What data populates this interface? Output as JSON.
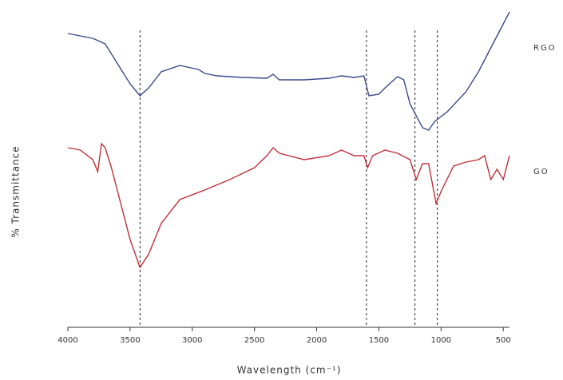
{
  "chart_data": {
    "type": "line",
    "x_label": "Wavelength (cm⁻¹)",
    "y_label": "% Transmittance",
    "xlim": [
      4000,
      450
    ],
    "xticks": [
      4000,
      3500,
      3000,
      2500,
      2000,
      1500,
      1000,
      500
    ],
    "ylim": [
      0,
      100
    ],
    "reference_lines": [
      3420,
      1600,
      1210,
      1030
    ],
    "series": [
      {
        "name": "RGO",
        "color": "#3b4a8c",
        "x": [
          4000,
          3900,
          3800,
          3700,
          3600,
          3500,
          3420,
          3350,
          3250,
          3100,
          2950,
          2900,
          2800,
          2600,
          2400,
          2350,
          2300,
          2100,
          1900,
          1800,
          1700,
          1620,
          1580,
          1500,
          1450,
          1350,
          1300,
          1250,
          1150,
          1100,
          1050,
          950,
          800,
          700,
          600,
          500,
          450
        ],
        "values": [
          92,
          91.25,
          90.5,
          88.75,
          82.5,
          76.25,
          72.5,
          75,
          80,
          82,
          80.75,
          79.5,
          78.75,
          78.25,
          78,
          79.25,
          77.5,
          77.5,
          78,
          78.75,
          78.25,
          78.75,
          72.5,
          73,
          75,
          78.5,
          77.5,
          70,
          62.5,
          61.75,
          64.5,
          67.5,
          73.75,
          80,
          87.5,
          95,
          98.75
        ]
      },
      {
        "name": "GO",
        "color": "#c0303a",
        "x": [
          4000,
          3900,
          3800,
          3760,
          3730,
          3700,
          3650,
          3600,
          3500,
          3420,
          3350,
          3250,
          3100,
          2900,
          2700,
          2500,
          2400,
          2350,
          2300,
          2100,
          1900,
          1800,
          1700,
          1620,
          1590,
          1550,
          1450,
          1350,
          1250,
          1200,
          1150,
          1100,
          1040,
          1000,
          900,
          800,
          700,
          650,
          600,
          550,
          500,
          450
        ],
        "values": [
          56.25,
          55.5,
          52.5,
          48.75,
          57.5,
          56.25,
          50,
          42.5,
          27.5,
          18.75,
          23,
          32.5,
          40,
          43,
          46.25,
          50,
          53.75,
          56.25,
          54.5,
          52.5,
          53.75,
          55.5,
          53.75,
          53.75,
          50,
          53.75,
          55.5,
          54.5,
          52.5,
          46.25,
          51.25,
          51.25,
          38.75,
          42.5,
          50.5,
          51.75,
          52.5,
          53.75,
          46.25,
          49.5,
          46.25,
          53.75
        ]
      }
    ]
  }
}
